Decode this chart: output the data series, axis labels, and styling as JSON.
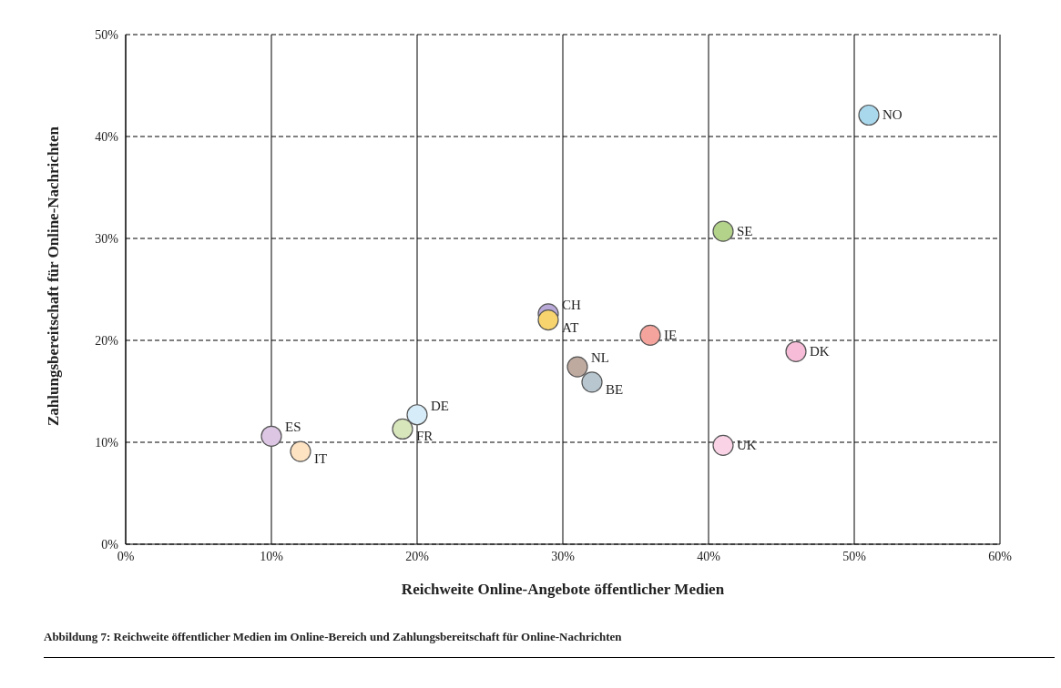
{
  "chart_data": {
    "type": "scatter",
    "xlabel": "Reichweite Online-Angebote öffentlicher Medien",
    "ylabel": "Zahlungsbereitschaft für Online-Nachrichten",
    "annotations": [
      "Abbildung 7: Reichweite öffentlicher Medien im Online-Bereich und Zahlungsbereitschaft für Online-Nachrichten"
    ],
    "xlim": [
      0,
      60
    ],
    "ylim": [
      0,
      50
    ],
    "xticks": [
      {
        "value": 0,
        "label": "0%"
      },
      {
        "value": 10,
        "label": "10%"
      },
      {
        "value": 20,
        "label": "20%"
      },
      {
        "value": 30,
        "label": "30%"
      },
      {
        "value": 40,
        "label": "40%"
      },
      {
        "value": 50,
        "label": "50%"
      },
      {
        "value": 60,
        "label": "60%"
      }
    ],
    "yticks": [
      {
        "value": 0,
        "label": "0%"
      },
      {
        "value": 10,
        "label": "10%"
      },
      {
        "value": 20,
        "label": "20%"
      },
      {
        "value": 30,
        "label": "30%"
      },
      {
        "value": 40,
        "label": "40%"
      },
      {
        "value": 50,
        "label": "50%"
      }
    ],
    "grid": true,
    "legend": false,
    "marker": "circle",
    "series": [
      {
        "name": "NO",
        "color": "#a9d8ec",
        "x": [
          51
        ],
        "values": [
          42.1
        ]
      },
      {
        "name": "SE",
        "color": "#b3d38a",
        "x": [
          41
        ],
        "values": [
          30.7
        ]
      },
      {
        "name": "CH",
        "color": "#b9a9d9",
        "x": [
          29
        ],
        "values": [
          22.6
        ]
      },
      {
        "name": "AT",
        "color": "#f8d46e",
        "x": [
          29
        ],
        "values": [
          22
        ]
      },
      {
        "name": "IE",
        "color": "#f4a49c",
        "x": [
          36
        ],
        "values": [
          20.5
        ]
      },
      {
        "name": "DK",
        "color": "#f6bcd8",
        "x": [
          46
        ],
        "values": [
          18.9
        ]
      },
      {
        "name": "NL",
        "color": "#bfaaa0",
        "x": [
          31
        ],
        "values": [
          17.4
        ]
      },
      {
        "name": "BE",
        "color": "#b7c6cf",
        "x": [
          32
        ],
        "values": [
          15.9
        ]
      },
      {
        "name": "DE",
        "color": "#d6ecf8",
        "x": [
          20
        ],
        "values": [
          12.7
        ]
      },
      {
        "name": "FR",
        "color": "#d8e6bc",
        "x": [
          19
        ],
        "values": [
          11.3
        ]
      },
      {
        "name": "ES",
        "color": "#dcc6e4",
        "x": [
          10
        ],
        "values": [
          10.6
        ]
      },
      {
        "name": "IT",
        "color": "#fde3c2",
        "x": [
          12
        ],
        "values": [
          9.1
        ]
      },
      {
        "name": "UK",
        "color": "#fad4e6",
        "x": [
          41
        ],
        "values": [
          9.7
        ]
      }
    ]
  }
}
